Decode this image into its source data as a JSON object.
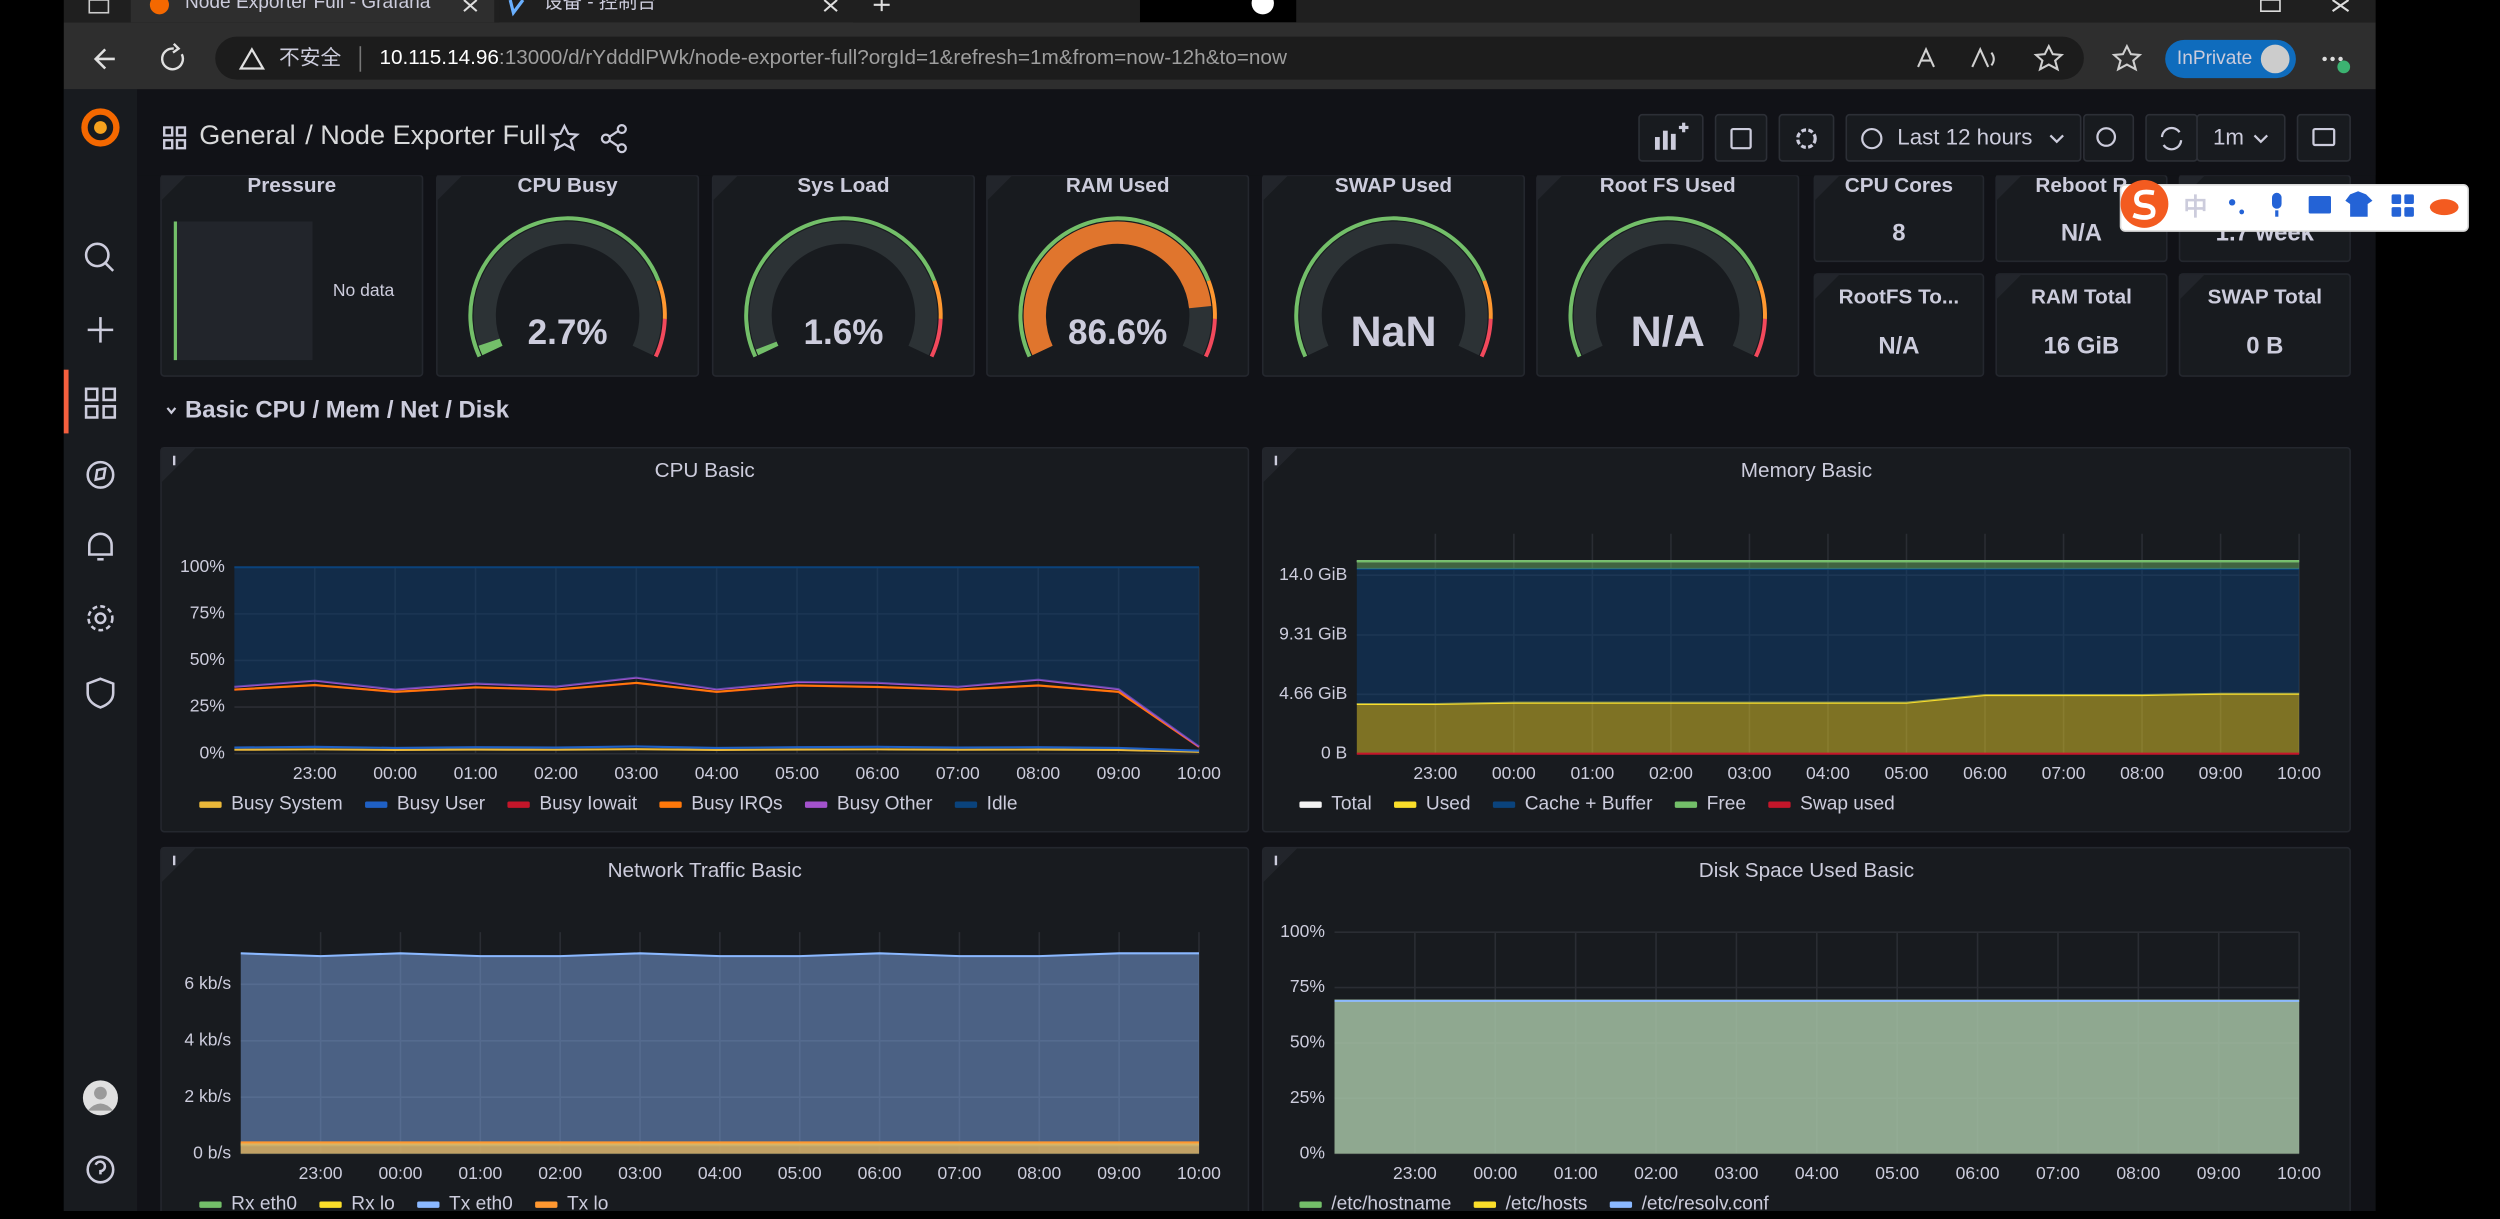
{
  "browser": {
    "tabs": [
      "Node Exporter Full - Grafana",
      "设备 - 控制台"
    ],
    "security": "不安全",
    "host": "10.115.14.96",
    "path": ":13000/d/rYdddlPWk/node-exporter-full?orgId=1&refresh=1m&from=now-12h&to=now",
    "profile": "InPrivate"
  },
  "grafana": {
    "folder": "General",
    "dashboard": "/ Node Exporter Full",
    "time_range": "Last 12 hours",
    "refresh": "1m",
    "row_title": "Basic CPU / Mem / Net / Disk"
  },
  "ime": {
    "label": "中"
  },
  "stats": [
    {
      "type": "bargauge",
      "title": "Pressure",
      "value": "No data",
      "color": "#73BF69"
    },
    {
      "type": "gauge",
      "title": "CPU Busy",
      "value": 2.7,
      "value_label": "2.7%",
      "ylim": [
        0,
        100
      ],
      "color": "#73BF69"
    },
    {
      "type": "gauge",
      "title": "Sys Load",
      "value": 1.6,
      "value_label": "1.6%",
      "ylim": [
        0,
        100
      ],
      "color": "#73BF69"
    },
    {
      "type": "gauge",
      "title": "RAM Used",
      "value": 86.6,
      "value_label": "86.6%",
      "ylim": [
        0,
        100
      ],
      "color": "#E0752D"
    },
    {
      "type": "gauge",
      "title": "SWAP Used",
      "value_label": "NaN",
      "ylim": [
        0,
        100
      ],
      "color": "#73BF69"
    },
    {
      "type": "gauge",
      "title": "Root FS Used",
      "value_label": "N/A",
      "ylim": [
        0,
        100
      ],
      "color": "#73BF69"
    },
    {
      "type": "stat",
      "title": "CPU Cores",
      "value": 8
    },
    {
      "type": "stat",
      "title": "Reboot R",
      "value": "N/A"
    },
    {
      "type": "stat",
      "value": "1.7 week"
    },
    {
      "type": "stat",
      "title": "RootFS To...",
      "value": "N/A"
    },
    {
      "type": "stat",
      "title": "RAM Total",
      "value": "16 GiB"
    },
    {
      "type": "stat",
      "title": "SWAP Total",
      "value": "0 B"
    }
  ],
  "charts": [
    {
      "type": "area",
      "title": "CPU Basic",
      "grid": true,
      "categories": [
        null,
        "23:00",
        "00:00",
        "01:00",
        "02:00",
        "03:00",
        "04:00",
        "05:00",
        "06:00",
        "07:00",
        "08:00",
        "09:00",
        "10:00"
      ],
      "ylim": [
        0,
        100
      ],
      "yticks": [
        {
          "value": 0,
          "label": "0%"
        },
        {
          "value": 25,
          "label": "25%"
        },
        {
          "value": 50,
          "label": "50%"
        },
        {
          "value": 75,
          "label": "75%"
        },
        {
          "value": 100,
          "label": "100%"
        }
      ],
      "series": [
        {
          "name": "Busy System",
          "color": "#EAB839",
          "stacked": true,
          "area": false,
          "values": [
            2.1,
            2.3,
            2.0,
            2.2,
            2.1,
            2.4,
            2.0,
            2.2,
            2.3,
            2.1,
            2.2,
            2.0,
            1.0
          ]
        },
        {
          "name": "Busy User",
          "color": "#1F60C4",
          "stacked": true,
          "area": false,
          "values": [
            1.2,
            1.4,
            1.1,
            1.3,
            1.2,
            1.5,
            1.1,
            1.3,
            1.4,
            1.2,
            1.3,
            1.1,
            0.6
          ]
        },
        {
          "name": "Busy Iowait",
          "color": "#C4162A",
          "stacked": true,
          "area": false,
          "values": [
            31,
            33,
            30,
            32,
            31,
            34,
            30,
            33,
            32,
            31,
            33,
            30,
            2
          ]
        },
        {
          "name": "Busy IRQs",
          "color": "#FF780A",
          "stacked": true,
          "area": false,
          "values": [
            0.1,
            0.1,
            0.1,
            0.1,
            0.1,
            0.1,
            0.1,
            0.1,
            0.1,
            0.1,
            0.1,
            0.1,
            0.1
          ]
        },
        {
          "name": "Busy Other",
          "color": "#A352CC",
          "stacked": true,
          "area": false,
          "values": [
            1.5,
            2.4,
            1.2,
            2.0,
            1.6,
            2.8,
            1.3,
            1.9,
            2.2,
            1.5,
            3.1,
            1.4,
            0.2
          ]
        },
        {
          "name": "Idle",
          "color": "#0A437C",
          "stacked": true,
          "area": true,
          "values": [
            64.1,
            60.8,
            65.6,
            62.4,
            64.0,
            59.2,
            65.5,
            61.5,
            62.0,
            64.1,
            60.3,
            65.4,
            96.1
          ]
        }
      ]
    },
    {
      "type": "area",
      "title": "Memory Basic",
      "grid": true,
      "categories": [
        null,
        "23:00",
        "00:00",
        "01:00",
        "02:00",
        "03:00",
        "04:00",
        "05:00",
        "06:00",
        "07:00",
        "08:00",
        "09:00",
        "10:00"
      ],
      "ylim": [
        0,
        17.25
      ],
      "yticks": [
        {
          "value": 0,
          "label": "0 B"
        },
        {
          "value": 4.66,
          "label": "4.66 GiB"
        },
        {
          "value": 9.31,
          "label": "9.31 GiB"
        },
        {
          "value": 14.0,
          "label": "14.0 GiB"
        }
      ],
      "series": [
        {
          "name": "Total",
          "color": "#F2F2F2",
          "stacked": false,
          "area": false,
          "values": [
            15.1,
            15.1,
            15.1,
            15.1,
            15.1,
            15.1,
            15.1,
            15.1,
            15.1,
            15.1,
            15.1,
            15.1,
            15.1
          ]
        },
        {
          "name": "Used",
          "color": "#FADE2A",
          "stacked": true,
          "area": true,
          "values": [
            3.9,
            3.9,
            4.0,
            4.0,
            4.0,
            4.0,
            4.0,
            4.0,
            4.6,
            4.6,
            4.6,
            4.7,
            4.7
          ]
        },
        {
          "name": "Cache + Buffer",
          "color": "#0A437C",
          "stacked": true,
          "area": true,
          "values": [
            10.6,
            10.6,
            10.5,
            10.5,
            10.5,
            10.5,
            10.5,
            10.5,
            9.9,
            9.9,
            9.9,
            9.8,
            9.8
          ]
        },
        {
          "name": "Free",
          "color": "#73BF69",
          "stacked": true,
          "area": true,
          "values": [
            0.6,
            0.6,
            0.6,
            0.6,
            0.6,
            0.6,
            0.6,
            0.6,
            0.6,
            0.6,
            0.6,
            0.6,
            0.6
          ]
        },
        {
          "name": "Swap used",
          "color": "#C4162A",
          "stacked": false,
          "area": false,
          "values": [
            0,
            0,
            0,
            0,
            0,
            0,
            0,
            0,
            0,
            0,
            0,
            0,
            0
          ]
        }
      ]
    },
    {
      "type": "area",
      "title": "Network Traffic Basic",
      "grid": true,
      "categories": [
        null,
        "23:00",
        "00:00",
        "01:00",
        "02:00",
        "03:00",
        "04:00",
        "05:00",
        "06:00",
        "07:00",
        "08:00",
        "09:00",
        "10:00"
      ],
      "ylim": [
        0,
        7.85
      ],
      "yticks": [
        {
          "value": 0,
          "label": "0 b/s"
        },
        {
          "value": 2,
          "label": "2 kb/s"
        },
        {
          "value": 4,
          "label": "4 kb/s"
        },
        {
          "value": 6,
          "label": "6 kb/s"
        }
      ],
      "series": [
        {
          "name": "Rx eth0",
          "color": "#73BF69",
          "stacked": false,
          "area": true,
          "values": [
            0.3,
            0.3,
            0.3,
            0.3,
            0.3,
            0.3,
            0.3,
            0.3,
            0.3,
            0.3,
            0.3,
            0.3,
            0.3
          ]
        },
        {
          "name": "Rx lo",
          "color": "#FADE2A",
          "stacked": false,
          "area": true,
          "values": [
            0.35,
            0.35,
            0.35,
            0.35,
            0.35,
            0.35,
            0.35,
            0.35,
            0.35,
            0.35,
            0.35,
            0.35,
            0.35
          ]
        },
        {
          "name": "Tx eth0",
          "color": "#8AB8FF",
          "stacked": false,
          "area": true,
          "values": [
            7.1,
            7.0,
            7.1,
            7.0,
            7.0,
            7.1,
            7.0,
            7.0,
            7.1,
            7.0,
            7.0,
            7.1,
            7.1
          ]
        },
        {
          "name": "Tx lo",
          "color": "#FF9830",
          "stacked": false,
          "area": true,
          "values": [
            0.4,
            0.4,
            0.4,
            0.4,
            0.4,
            0.4,
            0.4,
            0.4,
            0.4,
            0.4,
            0.4,
            0.4,
            0.4
          ]
        }
      ]
    },
    {
      "type": "area",
      "title": "Disk Space Used Basic",
      "grid": true,
      "categories": [
        null,
        "23:00",
        "00:00",
        "01:00",
        "02:00",
        "03:00",
        "04:00",
        "05:00",
        "06:00",
        "07:00",
        "08:00",
        "09:00",
        "10:00"
      ],
      "ylim": [
        0,
        100
      ],
      "yticks": [
        {
          "value": 0,
          "label": "0%"
        },
        {
          "value": 25,
          "label": "25%"
        },
        {
          "value": 50,
          "label": "50%"
        },
        {
          "value": 75,
          "label": "75%"
        },
        {
          "value": 100,
          "label": "100%"
        }
      ],
      "series": [
        {
          "name": "/etc/hostname",
          "color": "#73BF69",
          "stacked": false,
          "area": true,
          "values": [
            69,
            69,
            69,
            69,
            69,
            69,
            69,
            69,
            69,
            69,
            69,
            69,
            69
          ]
        },
        {
          "name": "/etc/hosts",
          "color": "#FADE2A",
          "stacked": false,
          "area": true,
          "values": [
            69,
            69,
            69,
            69,
            69,
            69,
            69,
            69,
            69,
            69,
            69,
            69,
            69
          ]
        },
        {
          "name": "/etc/resolv.conf",
          "color": "#8AB8FF",
          "stacked": false,
          "area": true,
          "values": [
            69,
            69,
            69,
            69,
            69,
            69,
            69,
            69,
            69,
            69,
            69,
            69,
            69
          ]
        }
      ]
    }
  ]
}
